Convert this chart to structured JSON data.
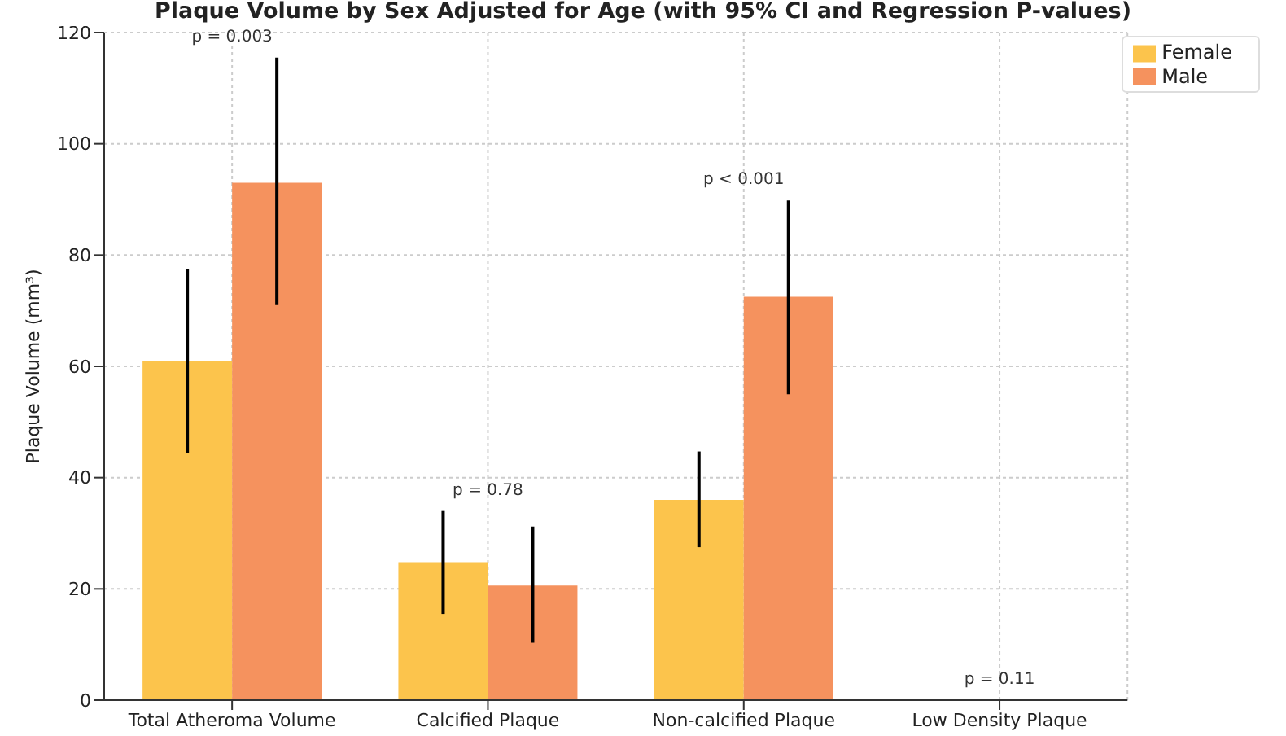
{
  "chart_data": {
    "type": "bar",
    "title": "Plaque Volume by Sex Adjusted for Age (with 95% CI and Regression P-values)",
    "ylabel": "Plaque Volume (mm³)",
    "categories": [
      "Total Atheroma Volume",
      "Calcified Plaque",
      "Non-calcified Plaque",
      "Low Density Plaque"
    ],
    "series": [
      {
        "name": "Female",
        "color": "#fcc44c",
        "values": [
          61,
          24.8,
          36,
          null
        ],
        "errors": [
          [
            44.5,
            77.5
          ],
          [
            15.5,
            34
          ],
          [
            27.5,
            44.7
          ],
          null
        ]
      },
      {
        "name": "Male",
        "color": "#f5925e",
        "values": [
          93,
          20.6,
          72.5,
          null
        ],
        "errors": [
          [
            71,
            115.5
          ],
          [
            10.3,
            31.2
          ],
          [
            55,
            89.8
          ],
          null
        ]
      }
    ],
    "annotations": [
      "p = 0.003",
      "p = 0.78",
      "p < 0.001",
      "p = 0.11"
    ],
    "ylim": [
      0,
      120
    ],
    "yticks": [
      0,
      20,
      40,
      60,
      80,
      100,
      120
    ],
    "grid": true,
    "legend": "top right"
  }
}
